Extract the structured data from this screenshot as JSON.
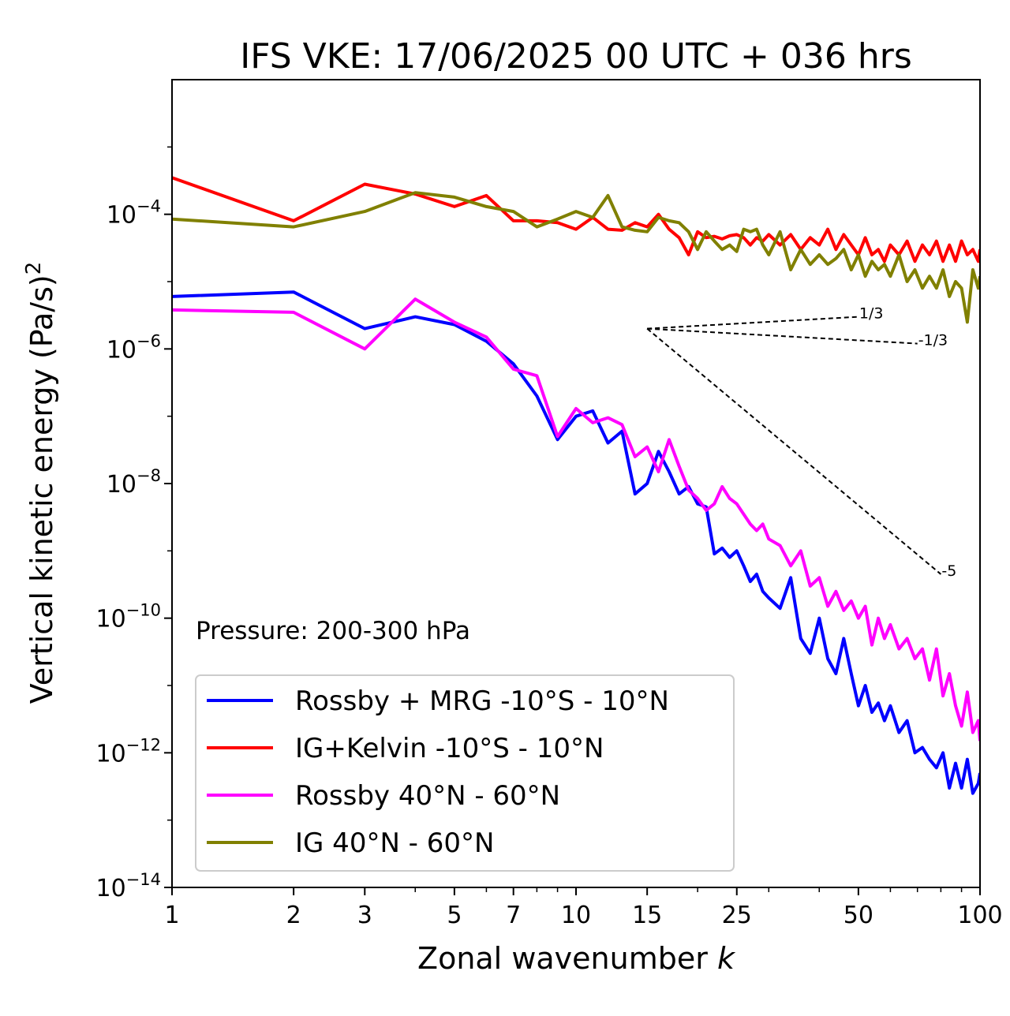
{
  "chart_data": {
    "type": "line",
    "title": "IFS VKE: 17/06/2025 00 UTC + 036 hrs",
    "xlabel": "Zonal wavenumber k",
    "ylabel": "Vertical kinetic energy (Pa/s)^2",
    "xscale": "log",
    "yscale": "log",
    "xlim": [
      1,
      100
    ],
    "ylim": [
      1e-14,
      0.01
    ],
    "x_ticks": [
      1,
      2,
      3,
      5,
      7,
      10,
      15,
      25,
      50,
      100
    ],
    "x_tick_labels": [
      "1",
      "2",
      "3",
      "5",
      "7",
      "10",
      "15",
      "25",
      "50",
      "100"
    ],
    "y_ticks": [
      -14,
      -12,
      -10,
      -8,
      -6,
      -4
    ],
    "y_tick_base": "10",
    "y_tick_exponents": [
      "−14",
      "−12",
      "−10",
      "−8",
      "−6",
      "−4"
    ],
    "grid": false,
    "legend_position": "lower-left",
    "annotation": "Pressure: 200-300 hPa",
    "series": [
      {
        "name": "Rossby + MRG -10°S - 10°N",
        "color": "#0000ff",
        "x": [
          1,
          2,
          3,
          4,
          5,
          6,
          7,
          8,
          9,
          10,
          11,
          12,
          13,
          14,
          15,
          16,
          17,
          18,
          19,
          20,
          21,
          22,
          23,
          24,
          25,
          26,
          27,
          28,
          29,
          30,
          32,
          34,
          36,
          38,
          40,
          42,
          44,
          46,
          48,
          50,
          52,
          54,
          56,
          58,
          60,
          63,
          66,
          69,
          72,
          75,
          78,
          81,
          84,
          87,
          90,
          93,
          96,
          99,
          100
        ],
        "y": [
          6e-06,
          7e-06,
          2e-06,
          3e-06,
          2.3e-06,
          1.3e-06,
          6e-07,
          2e-07,
          4.5e-08,
          1e-07,
          1.2e-07,
          4e-08,
          6e-08,
          7e-09,
          1e-08,
          3e-08,
          1.5e-08,
          7e-09,
          9e-09,
          5e-09,
          4.5e-09,
          9e-10,
          1.1e-09,
          8e-10,
          1e-09,
          6e-10,
          3.5e-10,
          4.5e-10,
          2.5e-10,
          2e-10,
          1.4e-10,
          4e-10,
          5e-11,
          3e-11,
          1e-10,
          2.5e-11,
          1.5e-11,
          5e-11,
          1.5e-11,
          5e-12,
          1e-11,
          4e-12,
          5.5e-12,
          3e-12,
          5e-12,
          2e-12,
          3e-12,
          1e-12,
          1.2e-12,
          8e-13,
          6e-13,
          1e-12,
          3e-13,
          7e-13,
          3e-13,
          8e-13,
          2.5e-13,
          3.5e-13,
          5e-13
        ]
      },
      {
        "name": "IG+Kelvin -10°S - 10°N",
        "color": "#ff0000",
        "x": [
          1,
          2,
          3,
          4,
          5,
          6,
          7,
          8,
          9,
          10,
          11,
          12,
          13,
          14,
          15,
          16,
          17,
          18,
          19,
          20,
          21,
          22,
          23,
          24,
          25,
          26,
          27,
          28,
          29,
          30,
          32,
          34,
          36,
          38,
          40,
          42,
          44,
          46,
          48,
          50,
          52,
          54,
          56,
          58,
          60,
          63,
          66,
          69,
          72,
          75,
          78,
          81,
          84,
          87,
          90,
          93,
          96,
          99,
          100
        ],
        "y": [
          0.00035,
          8e-05,
          0.00028,
          0.0002,
          0.00013,
          0.00019,
          8e-05,
          8e-05,
          7.5e-05,
          6e-05,
          9e-05,
          6e-05,
          5.8e-05,
          7.5e-05,
          6.5e-05,
          0.0001,
          6e-05,
          4.5e-05,
          2.5e-05,
          5.5e-05,
          4.5e-05,
          4.7e-05,
          4.3e-05,
          4.8e-05,
          5e-05,
          4.5e-05,
          3.5e-05,
          4.5e-05,
          4e-05,
          5e-05,
          3.5e-05,
          5e-05,
          3e-05,
          4.5e-05,
          3.5e-05,
          6e-05,
          3e-05,
          5e-05,
          3.5e-05,
          2.5e-05,
          4.5e-05,
          2.5e-05,
          3e-05,
          2e-05,
          3.5e-05,
          2.5e-05,
          4e-05,
          2e-05,
          3.5e-05,
          2.5e-05,
          4e-05,
          2e-05,
          3.5e-05,
          2e-05,
          4e-05,
          2.5e-05,
          3e-05,
          2e-05,
          3e-05
        ]
      },
      {
        "name": "Rossby 40°N - 60°N",
        "color": "#ff00ff",
        "x": [
          1,
          2,
          3,
          4,
          5,
          6,
          7,
          8,
          9,
          10,
          11,
          12,
          13,
          14,
          15,
          16,
          17,
          18,
          19,
          20,
          21,
          22,
          23,
          24,
          25,
          26,
          27,
          28,
          29,
          30,
          32,
          34,
          36,
          38,
          40,
          42,
          44,
          46,
          48,
          50,
          52,
          54,
          56,
          58,
          60,
          63,
          66,
          69,
          72,
          75,
          78,
          81,
          84,
          87,
          90,
          93,
          96,
          99,
          100
        ],
        "y": [
          3.8e-06,
          3.5e-06,
          1e-06,
          5.5e-06,
          2.5e-06,
          1.5e-06,
          5e-07,
          4e-07,
          5e-08,
          1.3e-07,
          8e-08,
          9.5e-08,
          7.5e-08,
          2.5e-08,
          3.5e-08,
          1.5e-08,
          4.5e-08,
          1.8e-08,
          8e-09,
          6e-09,
          4e-09,
          5e-09,
          9e-09,
          6e-09,
          5e-09,
          3.5e-09,
          2.5e-09,
          2e-09,
          2.5e-09,
          1.5e-09,
          1.2e-09,
          6e-10,
          1e-09,
          3e-10,
          4e-10,
          1.5e-10,
          2.5e-10,
          1.3e-10,
          1.8e-10,
          1e-10,
          1.5e-10,
          4e-11,
          1e-10,
          5e-11,
          8e-11,
          3.5e-11,
          5e-11,
          2.5e-11,
          3.5e-11,
          1.2e-11,
          3.5e-11,
          7e-12,
          1.5e-11,
          5e-12,
          2.5e-12,
          8e-12,
          2e-12,
          3e-12,
          1.5e-12
        ]
      },
      {
        "name": "IG 40°N - 60°N",
        "color": "#808000",
        "x": [
          1,
          2,
          3,
          4,
          5,
          6,
          7,
          8,
          9,
          10,
          11,
          12,
          13,
          14,
          15,
          16,
          17,
          18,
          19,
          20,
          21,
          22,
          23,
          24,
          25,
          26,
          27,
          28,
          29,
          30,
          32,
          34,
          36,
          38,
          40,
          42,
          44,
          46,
          48,
          50,
          52,
          54,
          56,
          58,
          60,
          63,
          66,
          69,
          72,
          75,
          78,
          81,
          84,
          87,
          90,
          93,
          96,
          99,
          100
        ],
        "y": [
          8.5e-05,
          6.5e-05,
          0.00011,
          0.00021,
          0.00018,
          0.00013,
          0.00011,
          6.5e-05,
          8.5e-05,
          0.00011,
          9e-05,
          0.00019,
          6.5e-05,
          5.8e-05,
          5.5e-05,
          9e-05,
          8e-05,
          7.5e-05,
          5.5e-05,
          3e-05,
          5.5e-05,
          4e-05,
          3e-05,
          3.5e-05,
          2.8e-05,
          6e-05,
          5.5e-05,
          6e-05,
          3.5e-05,
          2.5e-05,
          5.5e-05,
          1.5e-05,
          3e-05,
          1.8e-05,
          2.5e-05,
          1.8e-05,
          2.2e-05,
          3e-05,
          1.5e-05,
          2.5e-05,
          1.2e-05,
          2e-05,
          1.5e-05,
          1.8e-05,
          1.2e-05,
          2.5e-05,
          1e-05,
          1.5e-05,
          8e-06,
          1.2e-05,
          8e-06,
          1.5e-05,
          6e-06,
          1e-05,
          8e-06,
          2.5e-06,
          1.5e-05,
          8e-06,
          1.2e-05
        ]
      }
    ],
    "reference_slopes": [
      {
        "label": "1/3",
        "x": [
          15,
          50
        ],
        "y": [
          2e-06,
          3e-06
        ]
      },
      {
        "label": "-1/3",
        "x": [
          15,
          70
        ],
        "y": [
          2e-06,
          1.2e-06
        ]
      },
      {
        "label": "-5",
        "x": [
          15,
          80
        ],
        "y": [
          2e-06,
          4.5e-10
        ]
      }
    ]
  }
}
